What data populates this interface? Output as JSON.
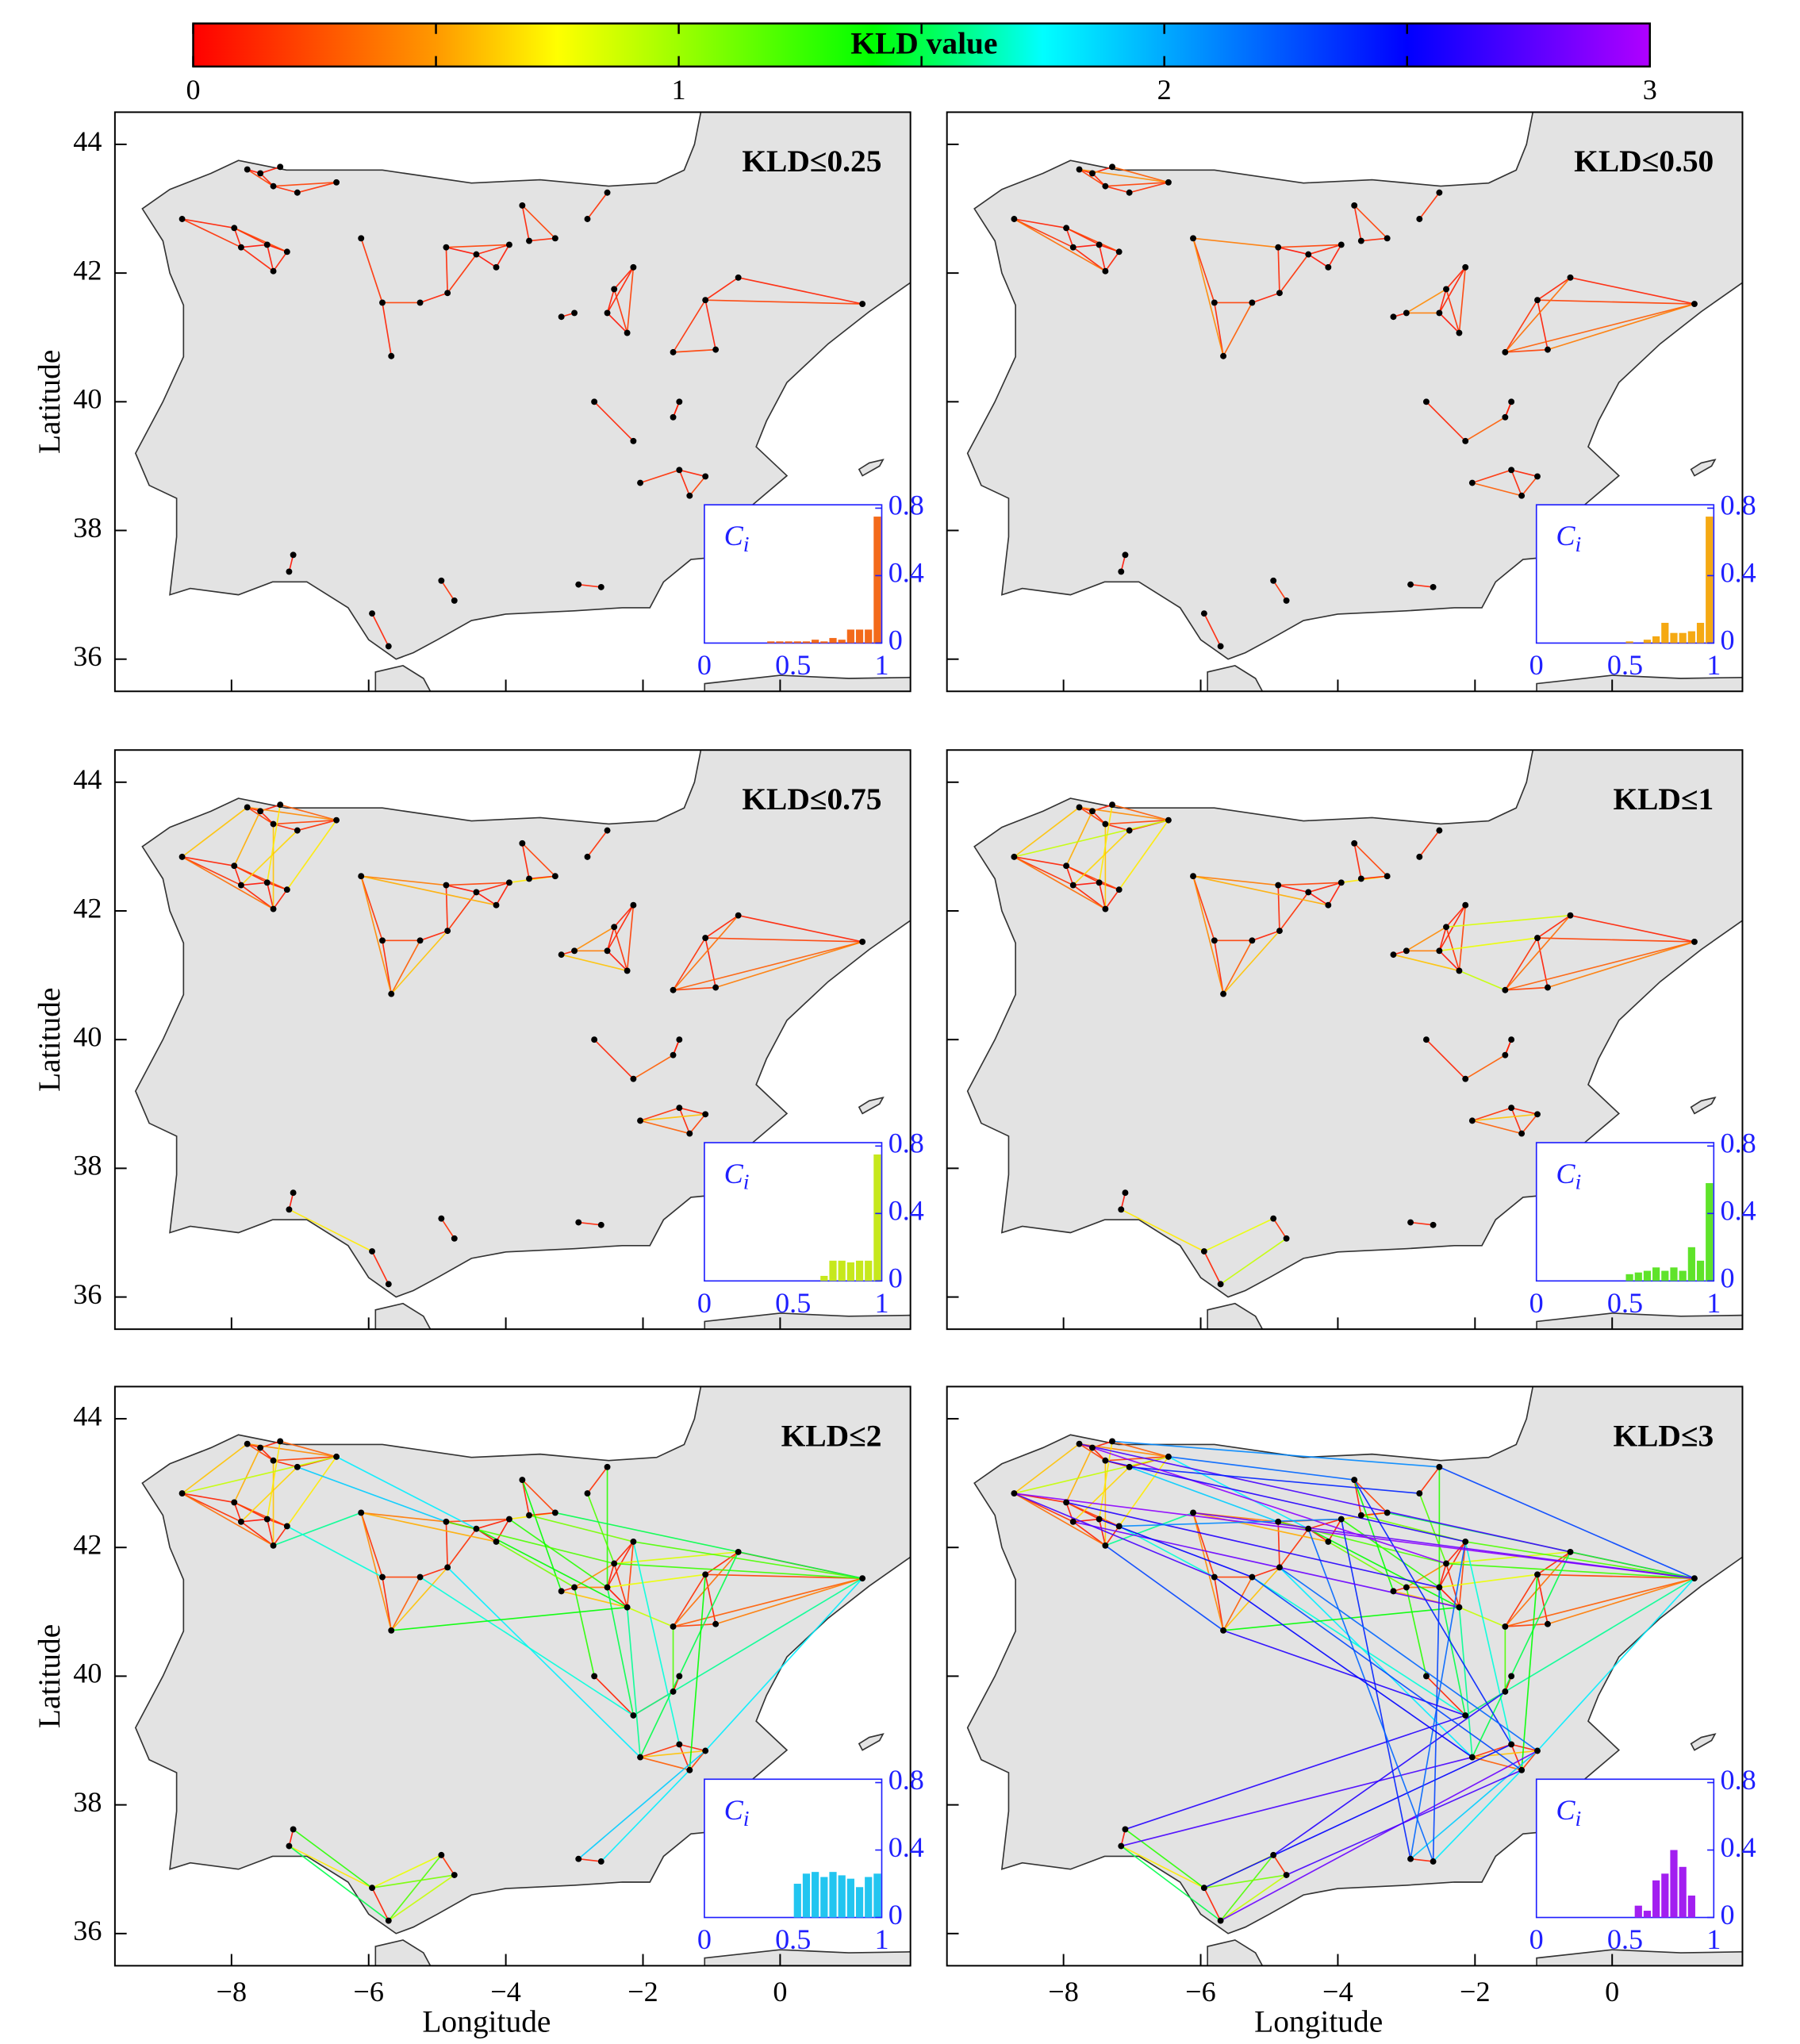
{
  "chart_data": {
    "type": "network-map",
    "colorbar": {
      "label": "KLD value",
      "lim": [
        0,
        3
      ],
      "ticks": [
        0,
        1,
        2,
        3
      ],
      "minor_ticks": [
        0.5,
        1.5,
        2.5
      ],
      "colormap": [
        "#ff0000",
        "#ff9900",
        "#ffff00",
        "#00ff00",
        "#00ffff",
        "#0000ff",
        "#b000ff"
      ],
      "colormap_stops": [
        0,
        0.5,
        0.75,
        1.4,
        1.75,
        2.5,
        3
      ]
    },
    "x_label": "Longitude",
    "y_label": "Latitude",
    "xlim": [
      -9.7,
      1.9
    ],
    "ylim": [
      35.5,
      44.5
    ],
    "xticks": [
      {
        "value": -8,
        "label": "−8"
      },
      {
        "value": -6,
        "label": "−6"
      },
      {
        "value": -4,
        "label": "−4"
      },
      {
        "value": -2,
        "label": "−2"
      },
      0
    ],
    "yticks": [
      36,
      38,
      40,
      42,
      44
    ],
    "stations": {
      "x": [
        -8.72,
        -7.96,
        -7.86,
        -7.48,
        -7.39,
        -7.19,
        -7.77,
        -7.58,
        -7.39,
        -7.04,
        -6.47,
        -7.29,
        -6.11,
        -5.8,
        -5.67,
        -5.25,
        -4.87,
        -4.85,
        -4.43,
        -4.14,
        -3.95,
        -3.76,
        -3.66,
        -3.28,
        -2.52,
        -2.81,
        -2.52,
        -2.14,
        -2.23,
        -2.42,
        -3.0,
        -3.19,
        -0.61,
        -1.09,
        -1.56,
        -0.94,
        1.2,
        -2.71,
        -2.14,
        -1.56,
        -1.47,
        -2.04,
        -1.47,
        -1.09,
        -1.32,
        -7.1,
        -7.16,
        -5.95,
        -5.71,
        -4.94,
        -4.75,
        -2.94,
        -2.61
      ],
      "y": [
        42.84,
        42.7,
        42.4,
        42.44,
        42.03,
        42.33,
        43.61,
        43.55,
        43.35,
        43.25,
        43.41,
        43.65,
        42.54,
        41.54,
        40.71,
        41.54,
        42.4,
        41.69,
        42.29,
        42.09,
        42.44,
        43.05,
        42.5,
        42.54,
        43.25,
        42.84,
        41.38,
        42.09,
        41.07,
        41.75,
        41.38,
        41.32,
        41.93,
        41.58,
        40.77,
        40.81,
        41.52,
        40.0,
        39.39,
        39.76,
        40.0,
        38.74,
        38.94,
        38.84,
        38.54,
        37.62,
        37.36,
        36.71,
        36.2,
        37.22,
        36.91,
        37.16,
        37.12
      ]
    },
    "links": {
      "source": [
        0,
        0,
        1,
        1,
        2,
        2,
        3,
        3,
        4,
        1,
        0,
        6,
        7,
        8,
        9,
        6,
        11,
        11,
        6,
        8,
        0,
        1,
        2,
        5,
        4,
        3,
        0,
        12,
        13,
        13,
        14,
        12,
        15,
        16,
        16,
        17,
        18,
        19,
        18,
        16,
        12,
        14,
        12,
        20,
        21,
        22,
        21,
        24,
        26,
        26,
        26,
        27,
        28,
        27,
        30,
        30,
        31,
        29,
        32,
        33,
        33,
        34,
        32,
        33,
        34,
        35,
        32,
        26,
        28,
        29,
        37,
        39,
        38,
        40,
        41,
        42,
        43,
        41,
        42,
        41,
        45,
        47,
        49,
        47,
        48,
        51,
        46,
        20,
        18,
        16,
        22,
        27,
        29,
        26,
        28,
        27,
        36,
        36,
        32,
        33,
        30,
        34,
        17,
        15,
        4,
        5,
        9,
        10,
        24,
        25,
        21,
        43,
        44,
        45,
        46,
        48,
        47,
        14,
        19,
        23,
        45,
        46,
        47,
        48,
        49,
        50,
        51,
        52,
        51,
        52,
        0,
        6,
        1,
        2,
        4,
        3,
        11,
        10,
        9,
        14,
        13,
        12,
        24,
        21,
        7,
        8,
        17,
        15,
        0,
        5
      ],
      "target": [
        1,
        2,
        2,
        3,
        3,
        4,
        4,
        5,
        5,
        5,
        4,
        7,
        8,
        9,
        10,
        8,
        7,
        10,
        10,
        10,
        6,
        7,
        9,
        10,
        8,
        11,
        10,
        13,
        14,
        15,
        15,
        16,
        17,
        17,
        18,
        18,
        19,
        20,
        20,
        20,
        14,
        17,
        19,
        23,
        22,
        23,
        23,
        25,
        27,
        28,
        29,
        29,
        29,
        28,
        31,
        26,
        28,
        30,
        33,
        34,
        35,
        35,
        36,
        36,
        36,
        36,
        34,
        33,
        34,
        32,
        38,
        40,
        39,
        39,
        42,
        43,
        44,
        44,
        44,
        43,
        46,
        48,
        50,
        49,
        50,
        52,
        47,
        26,
        28,
        29,
        27,
        36,
        36,
        38,
        41,
        42,
        43,
        38,
        41,
        44,
        37,
        39,
        41,
        38,
        12,
        13,
        16,
        18,
        26,
        29,
        31,
        51,
        52,
        47,
        48,
        49,
        50,
        28,
        30,
        36,
        38,
        41,
        42,
        43,
        39,
        44,
        27,
        26,
        20,
        18,
        36,
        32,
        26,
        28,
        14,
        15,
        24,
        21,
        25,
        38,
        41,
        36,
        36,
        42,
        29,
        27,
        43,
        44,
        13,
        20
      ],
      "values": [
        0.1,
        0.15,
        0.08,
        0.12,
        0.05,
        0.1,
        0.07,
        0.06,
        0.1,
        0.2,
        0.35,
        0.05,
        0.1,
        0.12,
        0.15,
        0.2,
        0.08,
        0.3,
        0.45,
        0.2,
        0.6,
        0.55,
        0.65,
        0.7,
        0.6,
        0.7,
        0.9,
        0.15,
        0.1,
        0.2,
        0.3,
        0.4,
        0.1,
        0.12,
        0.05,
        0.15,
        0.05,
        0.08,
        0.1,
        0.2,
        0.45,
        0.6,
        0.55,
        0.7,
        0.1,
        0.12,
        0.2,
        0.15,
        0.1,
        0.05,
        0.08,
        0.1,
        0.15,
        0.2,
        0.1,
        0.4,
        0.6,
        0.45,
        0.1,
        0.15,
        0.08,
        0.2,
        0.1,
        0.2,
        0.3,
        0.4,
        0.35,
        0.8,
        0.9,
        0.85,
        0.1,
        0.05,
        0.3,
        0.1,
        0.15,
        0.1,
        0.2,
        0.3,
        0.1,
        0.6,
        0.05,
        0.1,
        0.15,
        0.8,
        0.9,
        0.1,
        0.7,
        1.3,
        1.4,
        1.2,
        1.1,
        1.2,
        1.25,
        1.5,
        1.6,
        1.7,
        1.8,
        1.6,
        1.5,
        1.4,
        1.3,
        1.2,
        1.8,
        1.7,
        1.6,
        1.7,
        1.9,
        1.8,
        1.3,
        1.2,
        1.4,
        1.9,
        1.8,
        1.3,
        1.5,
        1.2,
        1.1,
        1.4,
        1.1,
        1.5,
        2.6,
        2.7,
        2.5,
        2.8,
        2.6,
        2.7,
        2.2,
        2.3,
        2.4,
        2.2,
        2.9,
        2.7,
        2.6,
        2.8,
        2.3,
        2.5,
        2.1,
        2.2,
        2.4,
        2.6,
        2.5,
        2.8,
        2.3,
        2.4,
        2.9,
        2.6,
        2.2,
        2.3,
        2.7,
        2.1
      ]
    },
    "inset": {
      "label": "C",
      "subscript": "i",
      "xlim": [
        0,
        1
      ],
      "ylim": [
        0,
        0.82
      ],
      "xticks": [
        0,
        0.5,
        1
      ],
      "yticks": [
        0,
        0.4,
        0.8
      ],
      "color": "#1f1fff"
    },
    "panels": [
      {
        "title": "KLD≤0.25",
        "kld_max": 0.25,
        "hist": {
          "color": "#f36a1a",
          "bins": [
            0.35,
            0.4,
            0.45,
            0.5,
            0.55,
            0.6,
            0.65,
            0.7,
            0.75,
            0.8,
            0.85,
            0.9,
            0.95,
            1.0
          ],
          "values": [
            0.01,
            0.01,
            0.01,
            0.01,
            0.01,
            0.02,
            0.01,
            0.03,
            0.02,
            0.08,
            0.08,
            0.08,
            0.75
          ]
        }
      },
      {
        "title": "KLD≤0.50",
        "kld_max": 0.5,
        "hist": {
          "color": "#f5a913",
          "bins": [
            0.5,
            0.55,
            0.6,
            0.65,
            0.7,
            0.75,
            0.8,
            0.85,
            0.9,
            0.95,
            1.0
          ],
          "values": [
            0.01,
            0,
            0.02,
            0.04,
            0.12,
            0.06,
            0.06,
            0.07,
            0.12,
            0.75
          ]
        }
      },
      {
        "title": "KLD≤0.75",
        "kld_max": 0.75,
        "hist": {
          "color": "#c6e81c",
          "bins": [
            0.5,
            0.55,
            0.6,
            0.65,
            0.7,
            0.75,
            0.8,
            0.85,
            0.9,
            0.95,
            1.0
          ],
          "values": [
            0,
            0,
            0,
            0.03,
            0.12,
            0.12,
            0.11,
            0.12,
            0.12,
            0.75
          ]
        }
      },
      {
        "title": "KLD≤1",
        "kld_max": 1,
        "hist": {
          "color": "#5fe32a",
          "bins": [
            0.5,
            0.55,
            0.6,
            0.65,
            0.7,
            0.75,
            0.8,
            0.85,
            0.9,
            0.95,
            1.0
          ],
          "values": [
            0.04,
            0.05,
            0.06,
            0.08,
            0.06,
            0.08,
            0.06,
            0.2,
            0.12,
            0.58
          ]
        }
      },
      {
        "title": "KLD≤2",
        "kld_max": 2,
        "hist": {
          "color": "#22c5f0",
          "bins": [
            0.5,
            0.55,
            0.6,
            0.65,
            0.7,
            0.75,
            0.8,
            0.85,
            0.9,
            0.95,
            1.0
          ],
          "values": [
            0.2,
            0.26,
            0.27,
            0.24,
            0.27,
            0.25,
            0.23,
            0.18,
            0.24,
            0.26
          ]
        }
      },
      {
        "title": "KLD≤3",
        "kld_max": 3,
        "hist": {
          "color": "#a21ff0",
          "bins": [
            0.5,
            0.55,
            0.6,
            0.65,
            0.7,
            0.75,
            0.8,
            0.85,
            0.9,
            0.95,
            1.0
          ],
          "values": [
            0,
            0.07,
            0.04,
            0.22,
            0.26,
            0.4,
            0.3,
            0.13,
            0,
            0
          ]
        }
      }
    ]
  }
}
